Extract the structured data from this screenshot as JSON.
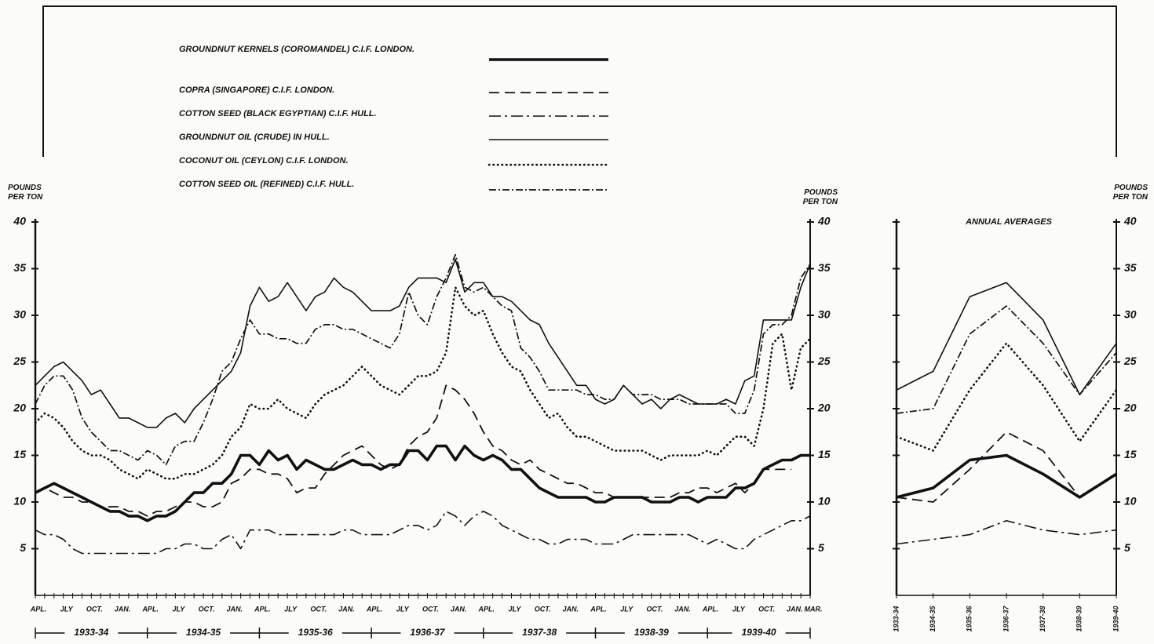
{
  "chart_data": [
    {
      "type": "line",
      "ylim": [
        0,
        40
      ],
      "yticks": [
        5,
        10,
        15,
        20,
        25,
        30,
        35,
        40
      ],
      "ytick_sides": [
        "left",
        "right"
      ],
      "ylabel": "POUNDS PER TON",
      "y2label": "POUNDS PER TON",
      "categories": [
        "APL.",
        null,
        null,
        "JLY",
        null,
        null,
        "OCT.",
        null,
        null,
        "JAN.",
        null,
        null,
        "APL.",
        null,
        null,
        "JLY",
        null,
        null,
        "OCT.",
        null,
        null,
        "JAN.",
        null,
        null,
        "APL.",
        null,
        null,
        "JLY",
        null,
        null,
        "OCT.",
        null,
        null,
        "JAN.",
        null,
        null,
        "APL.",
        null,
        null,
        "JLY",
        null,
        null,
        "OCT.",
        null,
        null,
        "JAN.",
        null,
        null,
        "APL.",
        null,
        null,
        "JLY",
        null,
        null,
        "OCT.",
        null,
        null,
        "JAN.",
        null,
        null,
        "APL.",
        null,
        null,
        "JLY",
        null,
        null,
        "OCT.",
        null,
        null,
        "JAN.",
        null,
        null,
        "APL.",
        null,
        null,
        "JLY",
        null,
        null,
        "OCT.",
        null,
        null,
        "JAN.",
        null,
        "MAR."
      ],
      "periods": [
        "1933-34",
        "1934-35",
        "1935-36",
        "1936-37",
        "1937-38",
        "1938-39",
        "1939-40"
      ],
      "series": [
        {
          "name": "GROUNDNUT KERNELS (COROMANDEL) C.I.F. LONDON.",
          "color": "#111111",
          "style": "thick",
          "values": [
            11,
            11.5,
            12,
            11.5,
            11,
            10.5,
            10,
            9.5,
            9,
            9,
            8.5,
            8.5,
            8,
            8.5,
            8.5,
            9,
            10,
            11,
            11,
            12,
            12,
            13,
            15,
            15,
            14,
            15.5,
            14.5,
            15,
            13.5,
            14.5,
            14,
            13.5,
            13.5,
            14,
            14.5,
            14,
            14,
            13.5,
            14,
            14,
            15.5,
            15.5,
            14.5,
            16,
            16,
            14.5,
            16,
            15,
            14.5,
            15,
            14.5,
            13.5,
            13.5,
            12.5,
            11.5,
            11,
            10.5,
            10.5,
            10.5,
            10.5,
            10,
            10,
            10.5,
            10.5,
            10.5,
            10.5,
            10,
            10,
            10,
            10.5,
            10.5,
            10,
            10.5,
            10.5,
            10.5,
            11.5,
            11.5,
            12,
            13.5,
            14,
            14.5,
            14.5,
            15,
            15
          ]
        },
        {
          "name": "COPRA (SINGAPORE) C.I.F. LONDON.",
          "color": "#111111",
          "style": "dashed",
          "values": [
            11,
            11.5,
            11,
            10.5,
            10.5,
            10,
            10,
            9.5,
            9.5,
            9.5,
            9,
            9,
            8.5,
            9,
            9,
            9.5,
            10,
            10,
            9.5,
            9.5,
            10,
            12,
            12.5,
            13.5,
            13.5,
            13,
            13,
            12.5,
            11,
            11.5,
            11.5,
            13,
            14,
            15,
            15.5,
            16,
            15,
            14,
            13.5,
            14,
            16,
            17,
            17.5,
            19,
            22.5,
            22,
            21,
            19.5,
            17.5,
            16,
            15.5,
            14.5,
            14,
            14.5,
            13.5,
            13,
            12.5,
            12,
            12,
            11.5,
            11,
            11,
            10.5,
            10.5,
            10.5,
            10.5,
            10.5,
            10.5,
            10.5,
            11,
            11,
            11.5,
            11.5,
            11,
            11.5,
            12,
            11,
            12,
            13.5,
            13.5,
            13.5,
            13.5,
            null,
            null
          ]
        },
        {
          "name": "COTTON SEED (BLACK EGYPTIAN) C.I.F. HULL.",
          "color": "#111111",
          "style": "dashdot",
          "values": [
            7,
            6.5,
            6.5,
            6,
            5,
            4.5,
            4.5,
            4.5,
            4.5,
            4.5,
            4.5,
            4.5,
            4.5,
            4.5,
            5,
            5,
            5.5,
            5.5,
            5,
            5,
            6,
            6.5,
            5,
            7,
            7,
            7,
            6.5,
            6.5,
            6.5,
            6.5,
            6.5,
            6.5,
            6.5,
            7,
            7,
            6.5,
            6.5,
            6.5,
            6.5,
            7,
            7.5,
            7.5,
            7,
            7.5,
            9,
            8.5,
            7.5,
            8.5,
            9,
            8.5,
            7.5,
            7,
            6.5,
            6,
            6,
            5.5,
            5.5,
            6,
            6,
            6,
            5.5,
            5.5,
            5.5,
            6,
            6.5,
            6.5,
            6.5,
            6.5,
            6.5,
            6.5,
            6.5,
            6,
            5.5,
            6,
            5.5,
            5,
            5,
            6,
            6.5,
            7,
            7.5,
            8,
            8,
            8.5
          ]
        },
        {
          "name": "GROUNDNUT OIL (CRUDE) IN HULL.",
          "color": "#111111",
          "style": "solid",
          "values": [
            22.5,
            23.5,
            24.5,
            25,
            24,
            23,
            21.5,
            22,
            20.5,
            19,
            19,
            18.5,
            18,
            18,
            19,
            19.5,
            18.5,
            20,
            21,
            22,
            23,
            24,
            26,
            31,
            33,
            31.5,
            32,
            33.5,
            32,
            30.5,
            32,
            32.5,
            34,
            33,
            32.5,
            31.5,
            30.5,
            30.5,
            30.5,
            31,
            33,
            34,
            34,
            34,
            33.5,
            36,
            32.5,
            33.5,
            33.5,
            32,
            32,
            31.5,
            30.5,
            29.5,
            29,
            27,
            25.5,
            24,
            22.5,
            22.5,
            21,
            20.5,
            21,
            22.5,
            21.5,
            20.5,
            21,
            20,
            21,
            21.5,
            21,
            20.5,
            20.5,
            20.5,
            21,
            20.5,
            23,
            23.5,
            29.5,
            29.5,
            29.5,
            29.5,
            33,
            35.5
          ]
        },
        {
          "name": "COCONUT OIL (CEYLON) C.I.F. LONDON.",
          "color": "#111111",
          "style": "dotted",
          "values": [
            18.5,
            19.5,
            19,
            18,
            16.5,
            15.5,
            15,
            15,
            14.5,
            13.5,
            13,
            12.5,
            13.5,
            13,
            12.5,
            12.5,
            13,
            13,
            13.5,
            14,
            15,
            17,
            18,
            20.5,
            20,
            20,
            21,
            20,
            19.5,
            19,
            20.5,
            21.5,
            22,
            22.5,
            23.5,
            24.5,
            23.5,
            22.5,
            22,
            21.5,
            22.5,
            23.5,
            23.5,
            24,
            26,
            33,
            31,
            30,
            30.5,
            28,
            26,
            24.5,
            24,
            22,
            20.5,
            19,
            19.5,
            18,
            17,
            17,
            16.5,
            16,
            15.5,
            15.5,
            15.5,
            15.5,
            15,
            14.5,
            15,
            15,
            15,
            15,
            15.5,
            15,
            16,
            17,
            17,
            16,
            20,
            27,
            28,
            22,
            26.5,
            27.5
          ]
        },
        {
          "name": "COTTON SEED OIL (REFINED) C.I.F. HULL.",
          "color": "#111111",
          "style": "xdash",
          "values": [
            20.5,
            22.5,
            23.5,
            23.5,
            22,
            19,
            17.5,
            16.5,
            15.5,
            15.5,
            15,
            14.5,
            15.5,
            15,
            14,
            16,
            16.5,
            16.5,
            18.5,
            21,
            24,
            25,
            27.5,
            29.5,
            28,
            28,
            27.5,
            27.5,
            27,
            27,
            28.5,
            29,
            29,
            28.5,
            28.5,
            28,
            27.5,
            27,
            26.5,
            28,
            32.5,
            30,
            29,
            32,
            34,
            36.5,
            33,
            32.5,
            33,
            32,
            31,
            30.5,
            26.5,
            25.5,
            24,
            22,
            22,
            22,
            22,
            21.5,
            21.5,
            21,
            21,
            22.5,
            21.5,
            21.5,
            21.5,
            21,
            21,
            21,
            20.5,
            20.5,
            20.5,
            20.5,
            20.5,
            19.5,
            19.5,
            22,
            28,
            29,
            29,
            30,
            34,
            35.5
          ]
        }
      ]
    },
    {
      "type": "line",
      "title": "ANNUAL AVERAGES",
      "ylim": [
        0,
        40
      ],
      "yticks": [
        5,
        10,
        15,
        20,
        25,
        30,
        35,
        40
      ],
      "ytick_sides": [
        "right"
      ],
      "y2label": "POUNDS PER TON",
      "xtick_rotation": 90,
      "categories": [
        "1933-34",
        "1934-35",
        "1935-36",
        "1936-37",
        "1937-38",
        "1938-39",
        "1939-40"
      ],
      "series": [
        {
          "color": "#111111",
          "style": "thick",
          "values": [
            10.5,
            11.5,
            14.5,
            15,
            13,
            10.5,
            13
          ]
        },
        {
          "color": "#111111",
          "style": "dashed",
          "values": [
            10.5,
            10,
            13.5,
            17.5,
            15.5,
            10.5,
            null
          ]
        },
        {
          "color": "#111111",
          "style": "dashdot",
          "values": [
            5.5,
            6,
            6.5,
            8,
            7,
            6.5,
            7
          ]
        },
        {
          "color": "#111111",
          "style": "solid",
          "values": [
            22,
            24,
            32,
            33.5,
            29.5,
            21.5,
            27
          ]
        },
        {
          "color": "#111111",
          "style": "dotted",
          "values": [
            17,
            15.5,
            22,
            27,
            22.5,
            16.5,
            22
          ]
        },
        {
          "color": "#111111",
          "style": "xdash",
          "values": [
            19.5,
            20,
            28,
            31,
            27,
            21.5,
            26
          ]
        }
      ]
    }
  ]
}
